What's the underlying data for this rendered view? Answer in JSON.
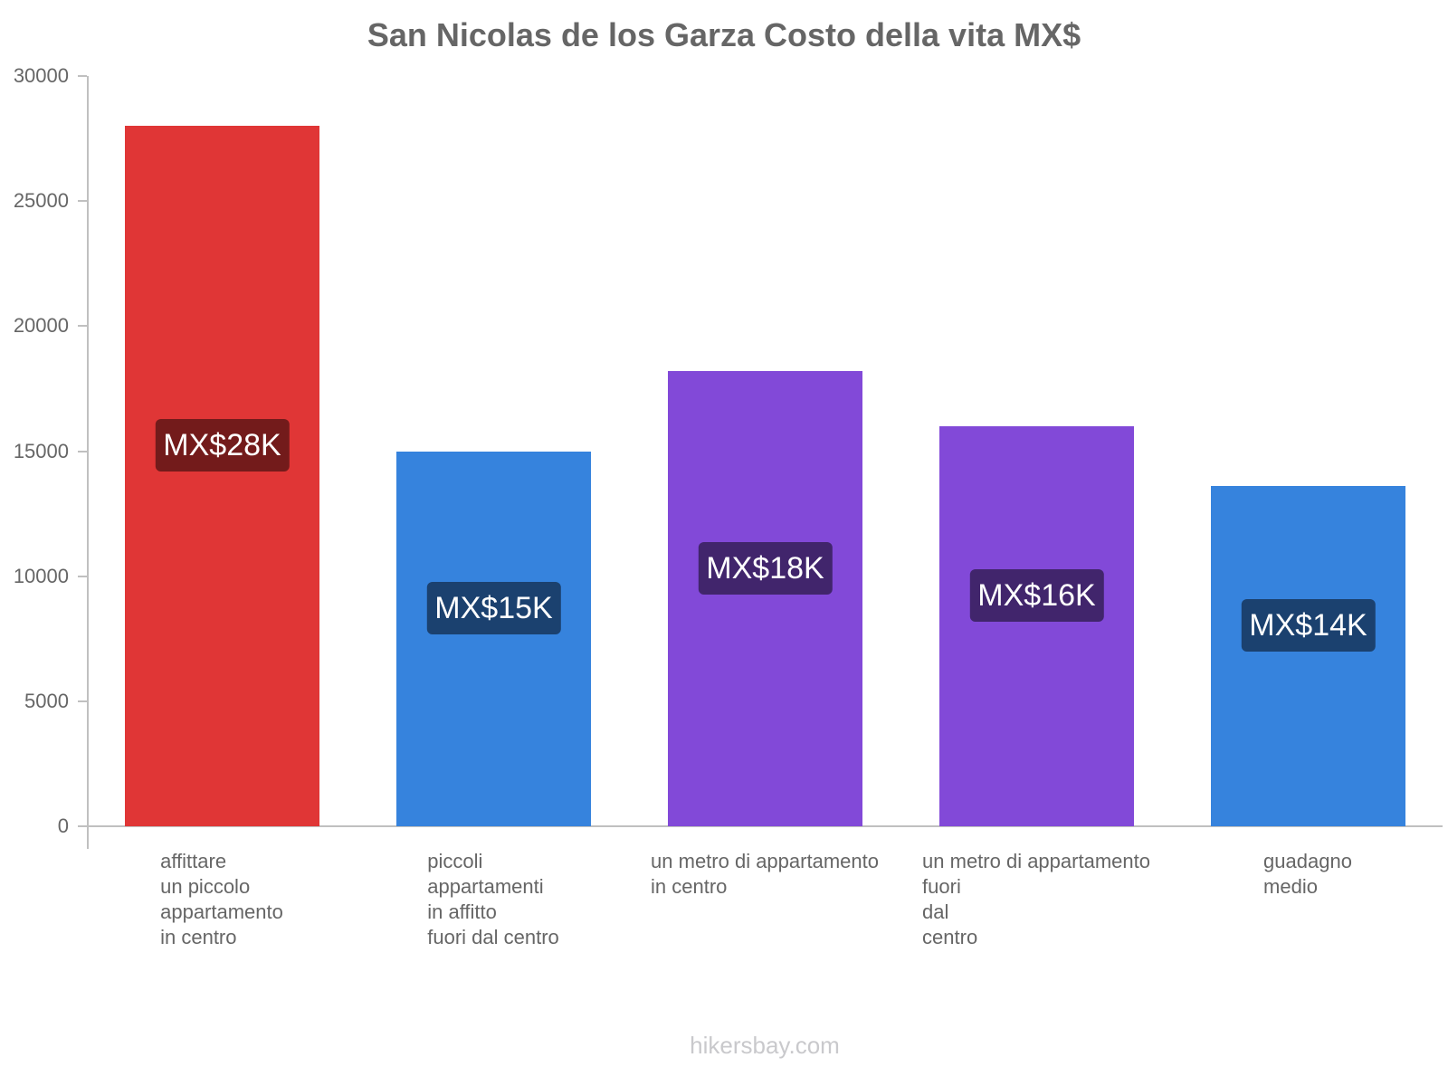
{
  "title": "San Nicolas de los Garza Costo della vita MX$",
  "watermark": "hikersbay.com",
  "y_ticks": [
    "0",
    "5000",
    "10000",
    "15000",
    "20000",
    "25000",
    "30000"
  ],
  "bars": [
    {
      "label_lines": [
        "affittare",
        "un piccolo",
        "appartamento",
        "in centro"
      ],
      "value_label": "MX$28K",
      "color": "#e03636",
      "badge_color": "#731b1b"
    },
    {
      "label_lines": [
        "piccoli",
        "appartamenti",
        "in affitto",
        "fuori dal centro"
      ],
      "value_label": "MX$15K",
      "color": "#3683dd",
      "badge_color": "#1b416f"
    },
    {
      "label_lines": [
        "un metro di appartamento",
        "in centro"
      ],
      "value_label": "MX$18K",
      "color": "#8249d8",
      "badge_color": "#41256c"
    },
    {
      "label_lines": [
        "un metro di appartamento",
        "fuori",
        "dal",
        "centro"
      ],
      "value_label": "MX$16K",
      "color": "#8249d8",
      "badge_color": "#41256c"
    },
    {
      "label_lines": [
        "guadagno",
        "medio"
      ],
      "value_label": "MX$14K",
      "color": "#3683dd",
      "badge_color": "#1b416f"
    }
  ],
  "chart_data": {
    "type": "bar",
    "title": "San Nicolas de los Garza Costo della vita MX$",
    "categories": [
      "affittare un piccolo appartamento in centro",
      "piccoli appartamenti in affitto fuori dal centro",
      "un metro di appartamento in centro",
      "un metro di appartamento fuori dal centro",
      "guadagno medio"
    ],
    "values": [
      28000,
      15000,
      18200,
      16000,
      13600
    ],
    "data_labels": [
      "MX$28K",
      "MX$15K",
      "MX$18K",
      "MX$16K",
      "MX$14K"
    ],
    "colors": [
      "#e03636",
      "#3683dd",
      "#8249d8",
      "#8249d8",
      "#3683dd"
    ],
    "xlabel": "",
    "ylabel": "",
    "ylim": [
      0,
      30000
    ],
    "yticks": [
      0,
      5000,
      10000,
      15000,
      20000,
      25000,
      30000
    ],
    "grid": false,
    "legend": null
  }
}
